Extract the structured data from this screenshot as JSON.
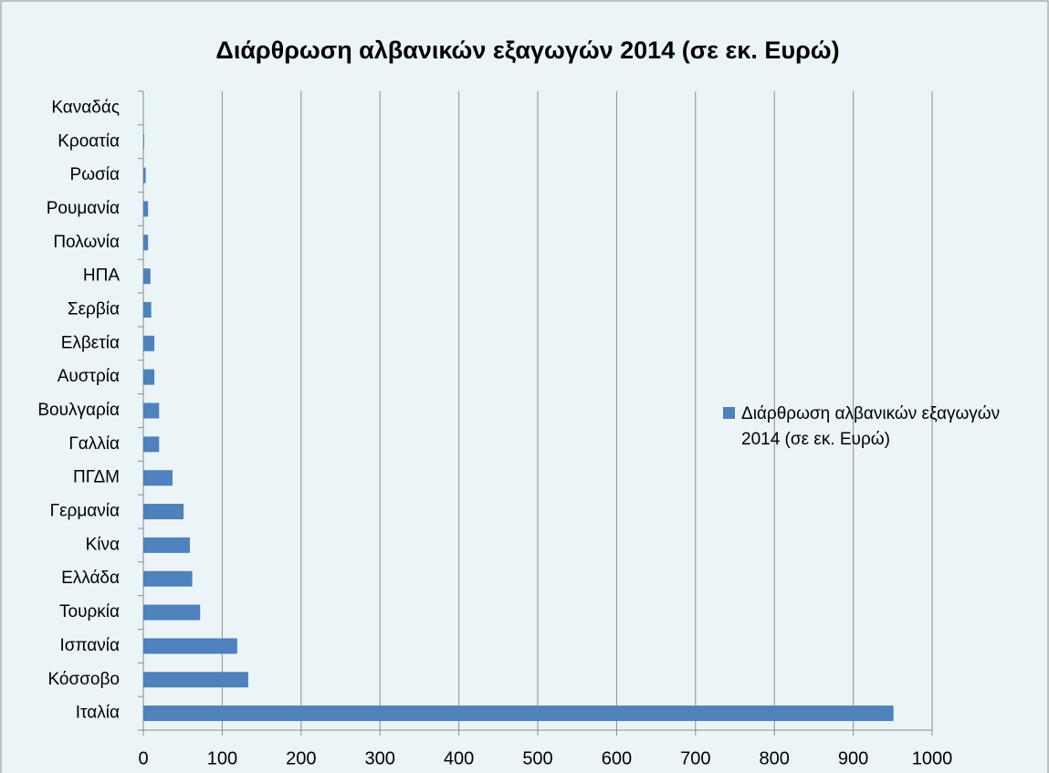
{
  "chart_data": {
    "type": "bar",
    "orientation": "horizontal",
    "title": "Διάρθρωση αλβανικών εξαγωγών 2014 (σε εκ. Ευρώ)",
    "categories": [
      "Καναδάς",
      "Κροατία",
      "Ρωσία",
      "Ρουμανία",
      "Πολωνία",
      "ΗΠΑ",
      "Σερβία",
      "Ελβετία",
      "Αυστρία",
      "Βουλγαρία",
      "Γαλλία",
      "ΠΓΔΜ",
      "Γερμανία",
      "Κίνα",
      "Ελλάδα",
      "Τουρκία",
      "Ισπανία",
      "Κόσσοβο",
      "Ιταλία"
    ],
    "series": [
      {
        "name": "Διάρθρωση αλβανικών εξαγωγών 2014 (σε εκ. Ευρώ)",
        "color": "#4f81bd",
        "values": [
          0.3,
          1,
          3,
          6,
          6,
          9,
          10,
          14,
          14,
          20,
          20,
          37,
          51,
          59,
          62,
          72,
          119,
          133,
          951
        ]
      }
    ],
    "xlim": [
      0,
      1000
    ],
    "xticks": [
      0,
      100,
      200,
      300,
      400,
      500,
      600,
      700,
      800,
      900,
      1000
    ],
    "grid": true,
    "legend": "right"
  }
}
